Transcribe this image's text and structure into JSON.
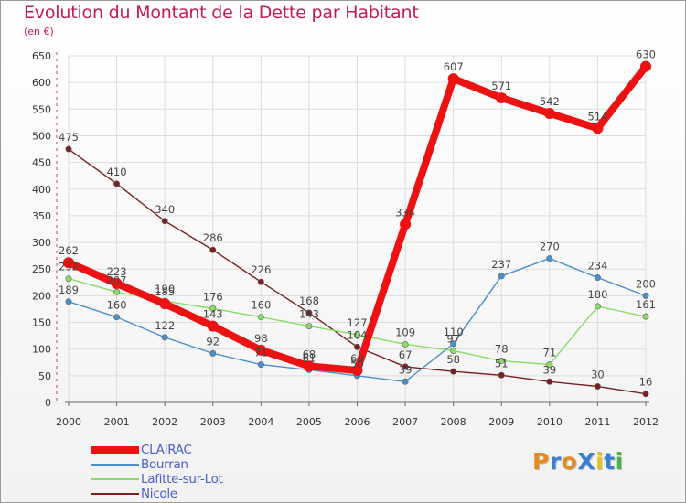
{
  "header": {
    "title": "Evolution du Montant de la Dette par Habitant",
    "subtitle": "(en €)"
  },
  "brand": {
    "text": "ProXiti",
    "letter_colors": [
      "#e58a1c",
      "#3a7fd6",
      "#e58a1c",
      "#3a7fd6",
      "#e5c21c",
      "#3a7fd6",
      "#4bb34a"
    ]
  },
  "chart_data": {
    "type": "line",
    "title": "Evolution du Montant de la Dette par Habitant",
    "ylabel": "(en €)",
    "xlabel": "",
    "ylim": [
      0,
      650
    ],
    "yticks": [
      0,
      50,
      100,
      150,
      200,
      250,
      300,
      350,
      400,
      450,
      500,
      550,
      600,
      650
    ],
    "grid": true,
    "legend_position": "bottom-left",
    "x": [
      "2000",
      "2001",
      "2002",
      "2003",
      "2004",
      "2005",
      "2006",
      "2007",
      "2008",
      "2009",
      "2010",
      "2011",
      "2012"
    ],
    "series": [
      {
        "name": "CLAIRAC",
        "color": "#ee1111",
        "values": [
          262,
          223,
          185,
          143,
          98,
          68,
          60,
          334,
          607,
          571,
          542,
          514,
          630
        ]
      },
      {
        "name": "Bourran",
        "color": "#4a8fd0",
        "values": [
          189,
          160,
          122,
          92,
          71,
          61,
          50,
          39,
          110,
          237,
          270,
          234,
          200
        ]
      },
      {
        "name": "Lafitte-sur-Lot",
        "color": "#88dd66",
        "values": [
          232,
          207,
          190,
          176,
          160,
          143,
          127,
          109,
          97,
          78,
          71,
          180,
          161
        ]
      },
      {
        "name": "Nicole",
        "color": "#7a1f1f",
        "values": [
          475,
          410,
          340,
          286,
          226,
          168,
          104,
          67,
          58,
          51,
          39,
          30,
          16
        ]
      }
    ]
  }
}
